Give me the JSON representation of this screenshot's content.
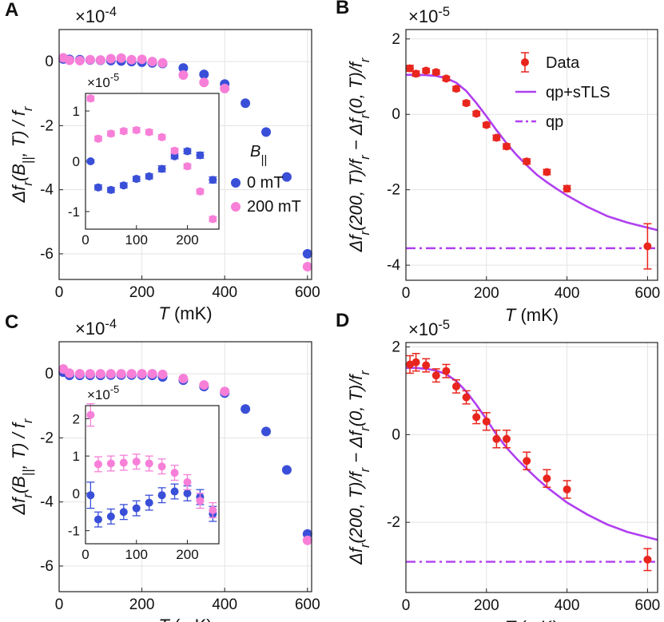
{
  "panels": [
    {
      "id": "A",
      "label": "A",
      "type": "scatter",
      "xlabel": "T (mK)",
      "ylabel": "Δf_r(B_||, T) / f_r",
      "exponent": "×10^-4",
      "xlim": [
        0,
        610
      ],
      "ylim": [
        -6.8,
        1.0
      ],
      "xticks": [
        0,
        200,
        400,
        600
      ],
      "yticks": [
        0,
        -2,
        -4,
        -6
      ],
      "legend_title": "B_||",
      "series": [
        {
          "name": "0 mT",
          "color": "#3a4fd8",
          "x": [
            10,
            25,
            50,
            75,
            100,
            125,
            150,
            175,
            200,
            225,
            250,
            300,
            350,
            400,
            450,
            500,
            550,
            600
          ],
          "y": [
            0.08,
            0.07,
            0.06,
            0.05,
            0.04,
            0.03,
            0.02,
            0.0,
            -0.02,
            -0.04,
            -0.06,
            -0.2,
            -0.4,
            -0.7,
            -1.3,
            -2.2,
            -3.6,
            -6.0
          ]
        },
        {
          "name": "200 mT",
          "color": "#f77fd8",
          "x": [
            10,
            25,
            50,
            75,
            100,
            125,
            150,
            175,
            200,
            225,
            250,
            300,
            350,
            400,
            600
          ],
          "y": [
            0.12,
            0.04,
            0.03,
            0.06,
            0.05,
            0.09,
            0.11,
            0.06,
            0.07,
            0.0,
            -0.04,
            -0.42,
            -0.65,
            -0.84,
            -6.4
          ]
        }
      ],
      "inset": {
        "exponent": "×10^-5",
        "xlim": [
          0,
          262
        ],
        "ylim": [
          -1.35,
          1.35
        ],
        "xticks": [
          0,
          100,
          200
        ],
        "yticks": [
          -1,
          0,
          1
        ],
        "series": [
          {
            "name": "0 mT",
            "color": "#3a4fd8",
            "x": [
              10,
              25,
              50,
              75,
              100,
              125,
              150,
              175,
              200,
              225,
              250
            ],
            "y": [
              0.0,
              -0.52,
              -0.57,
              -0.48,
              -0.35,
              -0.3,
              -0.15,
              0.1,
              0.2,
              0.12,
              -0.37
            ],
            "err": [
              0.03,
              0.05,
              0.05,
              0.05,
              0.05,
              0.05,
              0.06,
              0.05,
              0.05,
              0.06,
              0.06
            ]
          },
          {
            "name": "200 mT",
            "color": "#f77fd8",
            "x": [
              10,
              25,
              50,
              75,
              100,
              125,
              150,
              175,
              200,
              225,
              250
            ],
            "y": [
              1.25,
              0.45,
              0.55,
              0.6,
              0.62,
              0.58,
              0.48,
              0.21,
              -0.1,
              -0.6,
              -1.15
            ],
            "err": [
              0.05,
              0.05,
              0.05,
              0.05,
              0.05,
              0.05,
              0.05,
              0.05,
              0.05,
              0.05,
              0.05
            ]
          }
        ]
      }
    },
    {
      "id": "B",
      "label": "B",
      "type": "line",
      "xlabel": "T (mK)",
      "ylabel": "Δf_r(200, T)/f_r − Δf_r(0, T)/f_r",
      "exponent": "×10^-5",
      "xlim": [
        0,
        625
      ],
      "ylim": [
        -4.4,
        2.25
      ],
      "xticks": [
        0,
        200,
        400,
        600
      ],
      "yticks": [
        2,
        0,
        -2,
        -4
      ],
      "legend": [
        "Data",
        "qp+sTLS",
        "qp"
      ],
      "data": {
        "x": [
          10,
          25,
          50,
          75,
          100,
          125,
          150,
          175,
          200,
          225,
          250,
          300,
          350,
          400,
          600
        ],
        "y": [
          1.22,
          1.08,
          1.16,
          1.12,
          0.95,
          0.68,
          0.3,
          0.02,
          -0.28,
          -0.62,
          -0.85,
          -1.25,
          -1.53,
          -1.97,
          -3.5
        ],
        "err": [
          0.08,
          0.07,
          0.06,
          0.06,
          0.06,
          0.06,
          0.06,
          0.06,
          0.06,
          0.07,
          0.07,
          0.07,
          0.07,
          0.08,
          0.6
        ]
      },
      "fit": {
        "x": [
          0,
          25,
          50,
          75,
          100,
          125,
          150,
          175,
          200,
          225,
          250,
          275,
          300,
          325,
          350,
          375,
          400,
          450,
          500,
          550,
          625
        ],
        "y": [
          1.05,
          1.05,
          1.04,
          1.02,
          0.96,
          0.84,
          0.62,
          0.3,
          -0.05,
          -0.42,
          -0.77,
          -1.08,
          -1.35,
          -1.6,
          -1.8,
          -1.98,
          -2.15,
          -2.45,
          -2.7,
          -2.87,
          -3.07
        ]
      },
      "qp_level": -3.55
    },
    {
      "id": "C",
      "label": "C",
      "type": "scatter",
      "xlabel": "T (mK)",
      "ylabel": "Δf_r(B_||, T) / f_r",
      "exponent": "×10^-4",
      "xlim": [
        0,
        610
      ],
      "ylim": [
        -6.8,
        1.0
      ],
      "xticks": [
        0,
        200,
        400,
        600
      ],
      "yticks": [
        0,
        -2,
        -4,
        -6
      ],
      "series": [
        {
          "name": "0 mT",
          "color": "#3a4fd8",
          "x": [
            10,
            25,
            50,
            75,
            100,
            125,
            150,
            175,
            200,
            225,
            250,
            300,
            350,
            400,
            450,
            500,
            550,
            600
          ],
          "y": [
            0.05,
            -0.05,
            -0.05,
            -0.05,
            -0.05,
            -0.04,
            -0.04,
            -0.04,
            -0.04,
            -0.05,
            -0.1,
            -0.2,
            -0.4,
            -0.6,
            -1.1,
            -1.8,
            -3.0,
            -5.0
          ]
        },
        {
          "name": "200 mT",
          "color": "#f77fd8",
          "x": [
            10,
            25,
            50,
            75,
            100,
            125,
            150,
            175,
            200,
            225,
            250,
            300,
            350,
            400,
            600
          ],
          "y": [
            0.15,
            0.02,
            0.0,
            0.0,
            0.0,
            0.0,
            0.0,
            0.0,
            0.0,
            0.0,
            -0.02,
            -0.15,
            -0.35,
            -0.55,
            -5.2
          ]
        }
      ],
      "inset": {
        "exponent": "×10^-5",
        "xlim": [
          0,
          262
        ],
        "ylim": [
          -1.35,
          2.35
        ],
        "xticks": [
          0,
          100,
          200
        ],
        "yticks": [
          -1,
          0,
          1,
          2
        ],
        "series": [
          {
            "name": "0 mT",
            "color": "#3a4fd8",
            "x": [
              10,
              25,
              50,
              75,
              100,
              125,
              150,
              175,
              200,
              225,
              250
            ],
            "y": [
              -0.05,
              -0.7,
              -0.62,
              -0.5,
              -0.4,
              -0.25,
              -0.05,
              0.05,
              0.0,
              -0.1,
              -0.55
            ],
            "err": [
              0.35,
              0.2,
              0.2,
              0.2,
              0.2,
              0.2,
              0.2,
              0.2,
              0.2,
              0.2,
              0.2
            ]
          },
          {
            "name": "200 mT",
            "color": "#f77fd8",
            "x": [
              10,
              25,
              50,
              75,
              100,
              125,
              150,
              175,
              200,
              225,
              250
            ],
            "y": [
              2.1,
              0.78,
              0.8,
              0.82,
              0.85,
              0.8,
              0.72,
              0.55,
              0.3,
              -0.2,
              -0.45
            ],
            "err": [
              0.3,
              0.2,
              0.2,
              0.2,
              0.2,
              0.2,
              0.2,
              0.2,
              0.2,
              0.2,
              0.2
            ]
          }
        ]
      }
    },
    {
      "id": "D",
      "label": "D",
      "type": "line",
      "xlabel": "T (mK)",
      "ylabel": "Δf_r(200, T)/f_r − Δf_r(0, T)/f_r",
      "exponent": "×10^-5",
      "xlim": [
        0,
        625
      ],
      "ylim": [
        -3.6,
        2.1
      ],
      "xticks": [
        0,
        200,
        400,
        600
      ],
      "yticks": [
        2,
        0,
        -2
      ],
      "data": {
        "x": [
          10,
          25,
          50,
          75,
          100,
          125,
          150,
          175,
          200,
          225,
          250,
          300,
          350,
          400,
          600
        ],
        "y": [
          1.6,
          1.65,
          1.58,
          1.35,
          1.45,
          1.1,
          0.85,
          0.4,
          0.3,
          -0.1,
          -0.1,
          -0.6,
          -1.0,
          -1.25,
          -2.85
        ],
        "err": [
          0.2,
          0.2,
          0.15,
          0.15,
          0.15,
          0.15,
          0.15,
          0.15,
          0.2,
          0.2,
          0.2,
          0.2,
          0.2,
          0.2,
          0.25
        ]
      },
      "fit": {
        "x": [
          0,
          25,
          50,
          75,
          100,
          125,
          150,
          175,
          200,
          225,
          250,
          275,
          300,
          325,
          350,
          400,
          450,
          500,
          550,
          625
        ],
        "y": [
          1.52,
          1.52,
          1.5,
          1.46,
          1.38,
          1.22,
          0.98,
          0.68,
          0.35,
          0.0,
          -0.3,
          -0.55,
          -0.78,
          -1.0,
          -1.2,
          -1.55,
          -1.82,
          -2.05,
          -2.22,
          -2.4
        ]
      },
      "qp_level": -2.9
    }
  ]
}
